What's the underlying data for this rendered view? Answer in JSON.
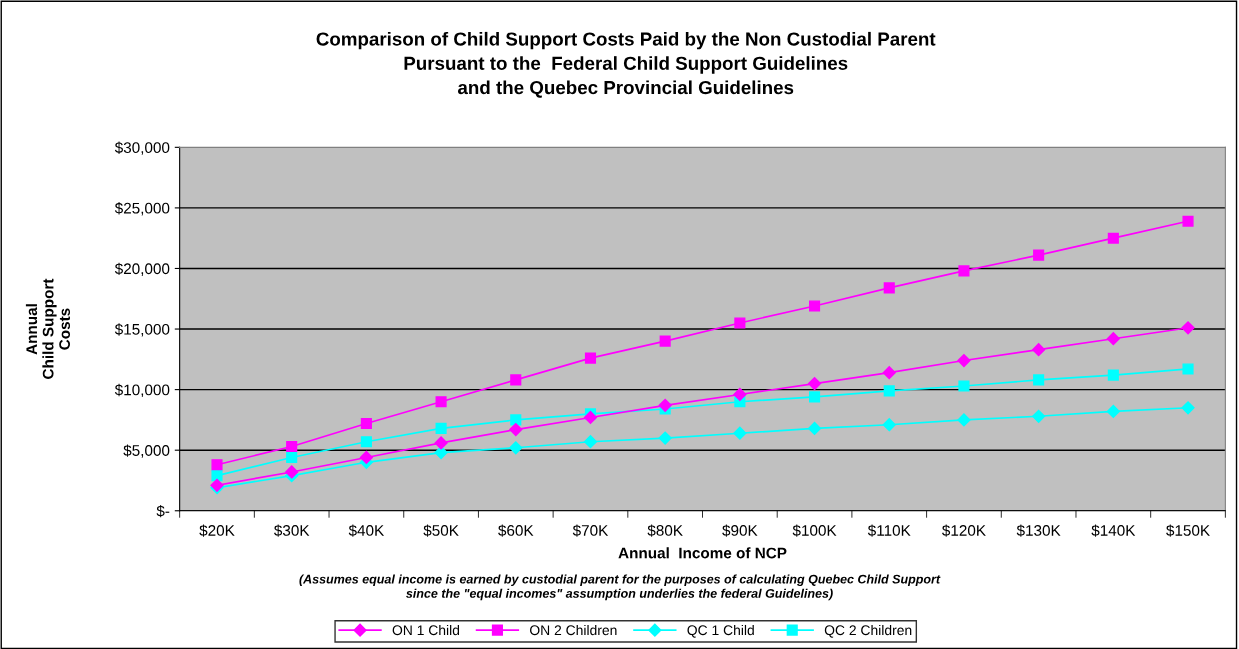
{
  "chart_data": {
    "type": "line",
    "title": "Comparison of Child Support Costs Paid by the Non Custodial Parent\nPursuant to the  Federal Child Support Guidelines\nand the Quebec Provincial Guidelines",
    "xlabel": "Annual  Income of NCP",
    "ylabel": "Annual\nChild Support\nCosts",
    "annotations": [
      "(Assumes equal income is earned by custodial parent for the purposes of calculating Quebec Child Support",
      "since the \"equal incomes\" assumption underlies the federal Guidelines)"
    ],
    "categories": [
      "$20K",
      "$30K",
      "$40K",
      "$50K",
      "$60K",
      "$70K",
      "$80K",
      "$90K",
      "$100K",
      "$110K",
      "$120K",
      "$130K",
      "$140K",
      "$150K"
    ],
    "series": [
      {
        "name": "ON 1 Child",
        "color": "#ff00ff",
        "marker": "diamond",
        "values": [
          2100,
          3200,
          4400,
          5600,
          6700,
          7700,
          8700,
          9600,
          10500,
          11400,
          12400,
          13300,
          14200,
          15100
        ]
      },
      {
        "name": "ON 2 Children",
        "color": "#ff00ff",
        "marker": "square",
        "values": [
          3800,
          5300,
          7200,
          9000,
          10800,
          12600,
          14000,
          15500,
          16900,
          18400,
          19800,
          21100,
          22500,
          23900
        ]
      },
      {
        "name": "QC 1 Child",
        "color": "#00ffff",
        "marker": "diamond",
        "values": [
          1900,
          2900,
          4000,
          4800,
          5200,
          5700,
          6000,
          6400,
          6800,
          7100,
          7500,
          7800,
          8200,
          8500
        ]
      },
      {
        "name": "QC 2 Children",
        "color": "#00ffff",
        "marker": "square",
        "values": [
          2900,
          4400,
          5700,
          6800,
          7500,
          8000,
          8400,
          9000,
          9400,
          9900,
          10300,
          10800,
          11200,
          11700
        ]
      }
    ],
    "ylim": [
      0,
      30000
    ],
    "yticks": [
      {
        "value": 0,
        "label": "$-"
      },
      {
        "value": 5000,
        "label": "$5,000"
      },
      {
        "value": 10000,
        "label": "$10,000"
      },
      {
        "value": 15000,
        "label": "$15,000"
      },
      {
        "value": 20000,
        "label": "$20,000"
      },
      {
        "value": 25000,
        "label": "$25,000"
      },
      {
        "value": 30000,
        "label": "$30,000"
      }
    ],
    "grid": "y",
    "legend": "bottom",
    "line_style": "solid"
  }
}
